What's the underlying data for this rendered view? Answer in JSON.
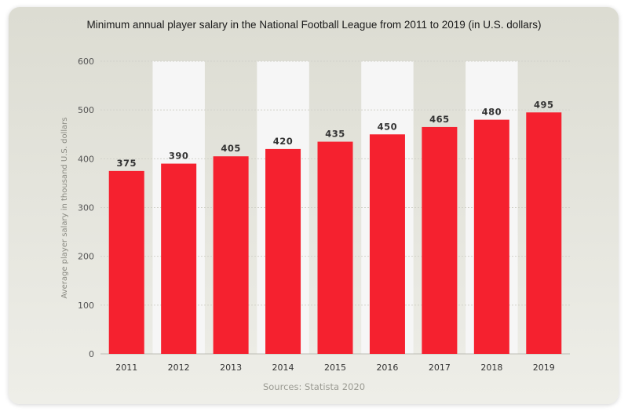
{
  "chart_data": {
    "type": "bar",
    "title": "Minimum annual player salary in the National Football League from 2011 to 2019 (in U.S. dollars)",
    "ylabel": "Average player salary in thousand U.S. dollars",
    "xlabel": "",
    "categories": [
      "2011",
      "2012",
      "2013",
      "2014",
      "2015",
      "2016",
      "2017",
      "2018",
      "2019"
    ],
    "values": [
      375,
      390,
      405,
      420,
      435,
      450,
      465,
      480,
      495
    ],
    "value_labels": [
      "375",
      "390",
      "405",
      "420",
      "435",
      "450",
      "465",
      "480",
      "495"
    ],
    "ylim": [
      0,
      600
    ],
    "yticks": [
      0,
      100,
      200,
      300,
      400,
      500,
      600
    ],
    "ytick_labels": [
      "0",
      "100",
      "200",
      "300",
      "400",
      "500",
      "600"
    ],
    "grid": true,
    "bar_color": "#f5212f",
    "highlight_band_color": "#f6f6f6",
    "source": "Sources: Statista 2020"
  }
}
